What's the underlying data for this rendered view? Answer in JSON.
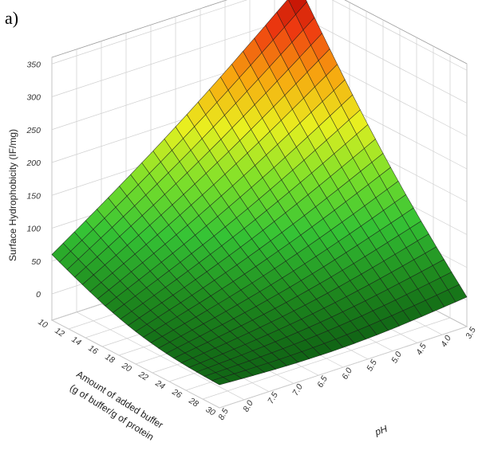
{
  "panel_label": "a)",
  "chart_data": {
    "type": "surface",
    "title": "",
    "zlabel": "Surface Hydrophobicity (IF/mg)",
    "xlabel_line1": "Amount of added buffer",
    "xlabel_line2": "(g of buffer/g of protein",
    "ylabel": "pH",
    "z_ticks": [
      "0",
      "50",
      "100",
      "150",
      "200",
      "250",
      "300",
      "350"
    ],
    "x_ticks": [
      "10",
      "12",
      "14",
      "16",
      "18",
      "20",
      "22",
      "24",
      "26",
      "28",
      "30"
    ],
    "y_ticks": [
      "3.5",
      "4.0",
      "4.5",
      "5.0",
      "5.5",
      "6.0",
      "6.5",
      "7.0",
      "7.5",
      "8.0",
      "8.5"
    ],
    "xlim": [
      10,
      30
    ],
    "ylim": [
      3.5,
      8.5
    ],
    "zlim": [
      -40,
      360
    ],
    "colormap": [
      "#0d5a12",
      "#1f8a1f",
      "#35c335",
      "#7ee02a",
      "#e8f020",
      "#f7a80f",
      "#ee3a10",
      "#b00000"
    ],
    "grid": true,
    "corner_values": {
      "buffer10_pH8.5": 60,
      "buffer10_pH3.5": 345,
      "buffer30_pH8.5": -5,
      "buffer30_pH3.5": 5
    }
  }
}
